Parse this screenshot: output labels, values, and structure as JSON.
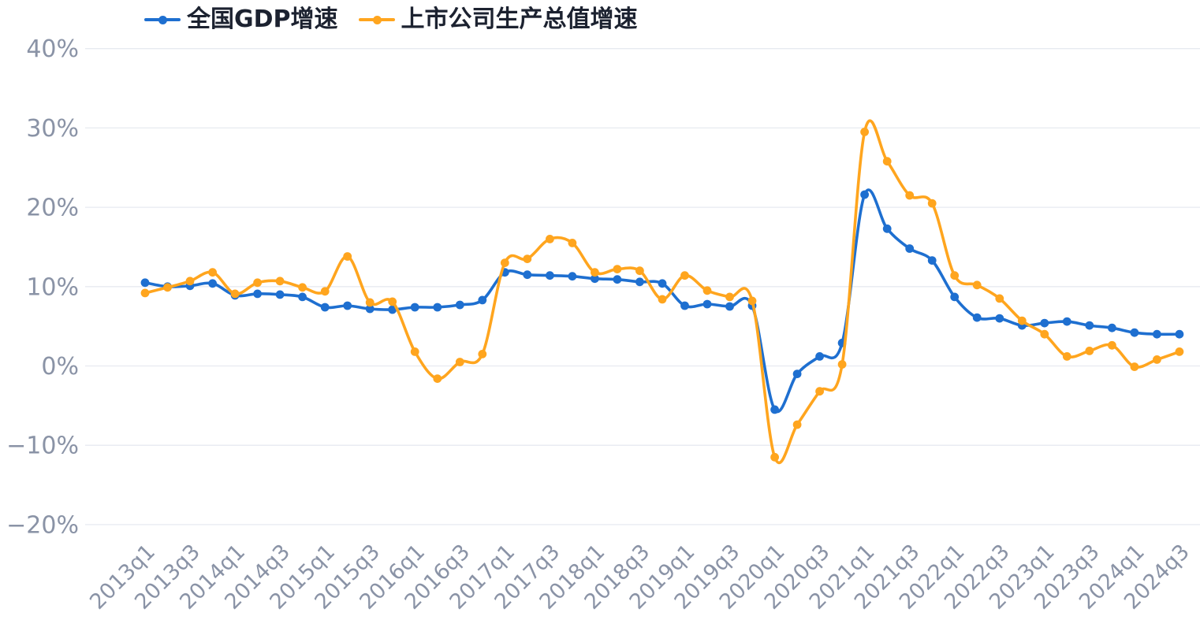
{
  "chart_data": {
    "type": "line",
    "title": "",
    "xlabel": "",
    "ylabel": "",
    "grid": true,
    "legend_position": "top-left",
    "ylim": [
      -25,
      45
    ],
    "yticks": [
      "40%",
      "30%",
      "20%",
      "10%",
      "0%",
      "−10%",
      "−20%"
    ],
    "ytick_values": [
      40,
      30,
      20,
      10,
      0,
      -10,
      -20
    ],
    "x_tick_labels": [
      "2013q1",
      "2013q3",
      "2014q1",
      "2014q3",
      "2015q1",
      "2015q3",
      "2016q1",
      "2016q3",
      "2017q1",
      "2017q3",
      "2018q1",
      "2018q3",
      "2019q1",
      "2019q3",
      "2020q1",
      "2020q3",
      "2021q1",
      "2021q3",
      "2022q1",
      "2022q3",
      "2023q1",
      "2023q3",
      "2024q1",
      "2024q3"
    ],
    "x_tick_step": 2,
    "categories": [
      "2013q1",
      "2013q2",
      "2013q3",
      "2013q4",
      "2014q1",
      "2014q2",
      "2014q3",
      "2014q4",
      "2015q1",
      "2015q2",
      "2015q3",
      "2015q4",
      "2016q1",
      "2016q2",
      "2016q3",
      "2016q4",
      "2017q1",
      "2017q2",
      "2017q3",
      "2017q4",
      "2018q1",
      "2018q2",
      "2018q3",
      "2018q4",
      "2019q1",
      "2019q2",
      "2019q3",
      "2019q4",
      "2020q1",
      "2020q2",
      "2020q3",
      "2020q4",
      "2021q1",
      "2021q2",
      "2021q3",
      "2021q4",
      "2022q1",
      "2022q2",
      "2022q3",
      "2022q4",
      "2023q1",
      "2023q2",
      "2023q3",
      "2023q4",
      "2024q1",
      "2024q2",
      "2024q3"
    ],
    "series": [
      {
        "name": "全国GDP增速",
        "color": "#1e6fd0",
        "values": [
          10.5,
          10.0,
          10.1,
          10.4,
          8.9,
          9.1,
          9.0,
          8.7,
          7.4,
          7.6,
          7.2,
          7.1,
          7.4,
          7.4,
          7.7,
          8.3,
          11.8,
          11.5,
          11.4,
          11.3,
          11.0,
          10.9,
          10.6,
          10.4,
          7.6,
          7.8,
          7.5,
          7.6,
          -5.5,
          -1.0,
          1.2,
          2.9,
          21.6,
          17.3,
          14.8,
          13.3,
          8.7,
          6.1,
          6.0,
          5.1,
          5.4,
          5.6,
          5.1,
          4.8,
          4.2,
          4.0,
          4.0
        ]
      },
      {
        "name": "上市公司生产总值增速",
        "color": "#ffa51e",
        "values": [
          9.2,
          9.9,
          10.7,
          11.8,
          9.1,
          10.5,
          10.7,
          9.9,
          9.4,
          13.8,
          8.0,
          8.1,
          1.8,
          -1.6,
          0.5,
          1.5,
          13.0,
          13.5,
          16.0,
          15.5,
          11.8,
          12.2,
          12.0,
          8.4,
          11.4,
          9.5,
          8.7,
          8.2,
          -11.5,
          -7.4,
          -3.2,
          0.2,
          29.5,
          25.8,
          21.5,
          20.5,
          11.4,
          10.2,
          8.5,
          5.7,
          4.0,
          1.2,
          1.9,
          2.6,
          -0.1,
          0.8,
          1.8
        ]
      }
    ]
  },
  "legend": {
    "item1": "全国GDP增速",
    "item2": "上市公司生产总值增速"
  }
}
